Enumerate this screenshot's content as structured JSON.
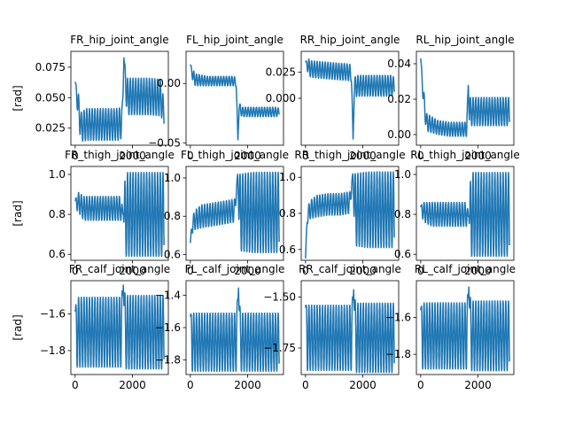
{
  "chart_data": {
    "type": "line",
    "grid": false,
    "subplots": [
      {
        "title": "FR_hip_joint_angle",
        "ylabel": "[rad]",
        "ylim": [
          0.011,
          0.088
        ],
        "yticks": [
          0.025,
          0.05,
          0.075
        ],
        "ytick_labels": [
          "0.025",
          "0.050",
          "0.075"
        ],
        "xlim": [
          -150,
          3250
        ],
        "xticks": [
          0,
          2000
        ],
        "xtick_labels": [
          "0",
          "2000"
        ],
        "series": {
          "x": [
            0,
            100,
            200,
            400,
            800,
            1200,
            1500,
            1640,
            1700,
            1800,
            2200,
            2600,
            3000,
            3100
          ],
          "y": [
            0.063,
            0.044,
            0.026,
            0.028,
            0.028,
            0.028,
            0.028,
            0.03,
            0.083,
            0.051,
            0.051,
            0.051,
            0.05,
            0.036
          ],
          "osc_amp": [
            0.0,
            0.012,
            0.012,
            0.013,
            0.013,
            0.013,
            0.013,
            0.013,
            0.0,
            0.015,
            0.015,
            0.015,
            0.015,
            0.01
          ]
        }
      },
      {
        "title": "FL_hip_joint_angle",
        "ylabel": "",
        "ylim": [
          -0.052,
          0.027
        ],
        "yticks": [
          -0.05,
          0.0
        ],
        "ytick_labels": [
          "−0.05",
          "0.00"
        ],
        "xlim": [
          -150,
          3250
        ],
        "xticks": [
          0,
          2000
        ],
        "xtick_labels": [
          "0",
          "2000"
        ],
        "series": {
          "x": [
            0,
            100,
            200,
            600,
            1000,
            1500,
            1600,
            1660,
            1700,
            1800,
            2400,
            3000,
            3100
          ],
          "y": [
            0.016,
            0.005,
            0.003,
            0.002,
            0.002,
            0.002,
            0.001,
            -0.048,
            -0.02,
            -0.024,
            -0.024,
            -0.024,
            -0.024
          ],
          "osc_amp": [
            0.0,
            0.006,
            0.005,
            0.004,
            0.004,
            0.004,
            0.004,
            0.0,
            0.004,
            0.004,
            0.004,
            0.004,
            0.003
          ]
        }
      },
      {
        "title": "RR_hip_joint_angle",
        "ylabel": "",
        "ylim": [
          -0.045,
          0.045
        ],
        "yticks": [
          0.0,
          0.025
        ],
        "ytick_labels": [
          "0.000",
          "0.025"
        ],
        "xlim": [
          -150,
          3250
        ],
        "xticks": [
          0,
          2000
        ],
        "xtick_labels": [
          "0",
          "2000"
        ],
        "series": {
          "x": [
            0,
            100,
            200,
            600,
            1000,
            1500,
            1600,
            1660,
            1700,
            1800,
            2400,
            3000,
            3100
          ],
          "y": [
            0.035,
            0.03,
            0.028,
            0.027,
            0.026,
            0.025,
            0.024,
            -0.04,
            0.01,
            0.012,
            0.012,
            0.012,
            0.012
          ],
          "osc_amp": [
            0.0,
            0.008,
            0.008,
            0.008,
            0.008,
            0.008,
            0.008,
            0.0,
            0.01,
            0.01,
            0.01,
            0.01,
            0.008
          ]
        }
      },
      {
        "title": "RL_hip_joint_angle",
        "ylabel": "",
        "ylim": [
          -0.006,
          0.047
        ],
        "yticks": [
          0.0,
          0.02,
          0.04
        ],
        "ytick_labels": [
          "0.00",
          "0.02",
          "0.04"
        ],
        "xlim": [
          -150,
          3250
        ],
        "xticks": [
          0,
          2000
        ],
        "xtick_labels": [
          "0",
          "2000"
        ],
        "series": {
          "x": [
            0,
            100,
            200,
            600,
            1000,
            1500,
            1600,
            1660,
            1700,
            1800,
            2400,
            3000,
            3100
          ],
          "y": [
            0.043,
            0.02,
            0.007,
            0.004,
            0.003,
            0.003,
            0.003,
            0.028,
            0.013,
            0.013,
            0.013,
            0.013,
            0.013
          ],
          "osc_amp": [
            0.0,
            0.006,
            0.005,
            0.004,
            0.004,
            0.004,
            0.004,
            0.0,
            0.008,
            0.008,
            0.008,
            0.008,
            0.008
          ]
        }
      },
      {
        "title": "FR_thigh_joint_angle",
        "ylabel": "[rad]",
        "ylim": [
          0.57,
          1.04
        ],
        "yticks": [
          0.6,
          0.8,
          1.0
        ],
        "ytick_labels": [
          "0.6",
          "0.8",
          "1.0"
        ],
        "xlim": [
          -150,
          3250
        ],
        "xticks": [
          0,
          2000
        ],
        "xtick_labels": [
          "0",
          "2000"
        ],
        "series": {
          "x": [
            0,
            60,
            120,
            300,
            700,
            1200,
            1600,
            1680,
            1750,
            2200,
            2700,
            3100
          ],
          "y": [
            0.87,
            0.86,
            0.86,
            0.83,
            0.83,
            0.83,
            0.83,
            0.8,
            0.8,
            0.8,
            0.8,
            0.8
          ],
          "osc_amp": [
            0.0,
            0.04,
            0.05,
            0.06,
            0.06,
            0.06,
            0.06,
            0.0,
            0.21,
            0.21,
            0.21,
            0.21
          ]
        }
      },
      {
        "title": "FL_thigh_joint_angle",
        "ylabel": "",
        "ylim": [
          0.57,
          1.06
        ],
        "yticks": [
          0.6,
          0.8,
          1.0
        ],
        "ytick_labels": [
          "0.6",
          "0.8",
          "1.0"
        ],
        "xlim": [
          -150,
          3250
        ],
        "xticks": [
          0,
          2000
        ],
        "xtick_labels": [
          "0",
          "2000"
        ],
        "series": {
          "x": [
            0,
            60,
            150,
            400,
            800,
            1200,
            1550,
            1650,
            1720,
            2200,
            2700,
            3100
          ],
          "y": [
            0.66,
            0.75,
            0.78,
            0.8,
            0.81,
            0.82,
            0.83,
            1.02,
            0.82,
            0.82,
            0.82,
            0.82
          ],
          "osc_amp": [
            0.0,
            0.04,
            0.05,
            0.06,
            0.06,
            0.06,
            0.06,
            0.0,
            0.2,
            0.21,
            0.21,
            0.21
          ]
        }
      },
      {
        "title": "RR_thigh_joint_angle",
        "ylabel": "",
        "ylim": [
          0.54,
          1.06
        ],
        "yticks": [
          0.6,
          0.8,
          1.0
        ],
        "ytick_labels": [
          "0.6",
          "0.8",
          "1.0"
        ],
        "xlim": [
          -150,
          3250
        ],
        "xticks": [
          0,
          2000
        ],
        "xtick_labels": [
          "0",
          "2000"
        ],
        "series": {
          "x": [
            0,
            60,
            150,
            400,
            800,
            1200,
            1550,
            1650,
            1720,
            2200,
            2700,
            3100
          ],
          "y": [
            0.55,
            0.78,
            0.82,
            0.84,
            0.85,
            0.85,
            0.86,
            1.02,
            0.82,
            0.82,
            0.82,
            0.82
          ],
          "osc_amp": [
            0.0,
            0.04,
            0.05,
            0.06,
            0.06,
            0.06,
            0.06,
            0.0,
            0.2,
            0.21,
            0.21,
            0.21
          ]
        }
      },
      {
        "title": "RL_thigh_joint_angle",
        "ylabel": "",
        "ylim": [
          0.57,
          1.04
        ],
        "yticks": [
          0.6,
          0.8,
          1.0
        ],
        "ytick_labels": [
          "0.6",
          "0.8",
          "1.0"
        ],
        "xlim": [
          -150,
          3250
        ],
        "xticks": [
          0,
          2000
        ],
        "xtick_labels": [
          "0",
          "2000"
        ],
        "series": {
          "x": [
            0,
            60,
            150,
            400,
            800,
            1200,
            1600,
            1680,
            1750,
            2200,
            2700,
            3100
          ],
          "y": [
            0.84,
            0.82,
            0.81,
            0.8,
            0.8,
            0.8,
            0.8,
            0.79,
            0.8,
            0.8,
            0.8,
            0.8
          ],
          "osc_amp": [
            0.0,
            0.04,
            0.05,
            0.06,
            0.06,
            0.06,
            0.06,
            0.0,
            0.21,
            0.21,
            0.21,
            0.21
          ]
        }
      },
      {
        "title": "FR_calf_joint_angle",
        "ylabel": "[rad]",
        "ylim": [
          -1.93,
          -1.42
        ],
        "yticks": [
          -1.8,
          -1.6
        ],
        "ytick_labels": [
          "−1.8",
          "−1.6"
        ],
        "xlim": [
          -150,
          3250
        ],
        "xticks": [
          0,
          2000
        ],
        "xtick_labels": [
          "0",
          "2000"
        ],
        "series": {
          "x": [
            0,
            60,
            150,
            600,
            1200,
            1600,
            1680,
            1750,
            2300,
            3100
          ],
          "y": [
            -1.58,
            -1.7,
            -1.7,
            -1.7,
            -1.7,
            -1.7,
            -1.44,
            -1.7,
            -1.7,
            -1.7
          ],
          "osc_amp": [
            0.0,
            0.19,
            0.19,
            0.19,
            0.19,
            0.19,
            0.0,
            0.2,
            0.2,
            0.2
          ]
        }
      },
      {
        "title": "FL_calf_joint_angle",
        "ylabel": "",
        "ylim": [
          -1.89,
          -1.31
        ],
        "yticks": [
          -1.8,
          -1.6,
          -1.4
        ],
        "ytick_labels": [
          "−1.8",
          "−1.6",
          "−1.4"
        ],
        "xlim": [
          -150,
          3250
        ],
        "xticks": [
          0,
          2000
        ],
        "xtick_labels": [
          "0",
          "2000"
        ],
        "series": {
          "x": [
            0,
            60,
            150,
            600,
            1200,
            1600,
            1680,
            1750,
            2300,
            3100
          ],
          "y": [
            -1.52,
            -1.69,
            -1.69,
            -1.69,
            -1.69,
            -1.69,
            -1.35,
            -1.69,
            -1.69,
            -1.69
          ],
          "osc_amp": [
            0.0,
            0.18,
            0.18,
            0.18,
            0.18,
            0.18,
            0.0,
            0.18,
            0.18,
            0.18
          ]
        }
      },
      {
        "title": "RR_calf_joint_angle",
        "ylabel": "",
        "ylim": [
          -1.88,
          -1.42
        ],
        "yticks": [
          -1.75,
          -1.5
        ],
        "ytick_labels": [
          "−1.75",
          "−1.50"
        ],
        "xlim": [
          -150,
          3250
        ],
        "xticks": [
          0,
          2000
        ],
        "xtick_labels": [
          "0",
          "2000"
        ],
        "series": {
          "x": [
            0,
            60,
            150,
            600,
            1200,
            1600,
            1680,
            1750,
            2300,
            3100
          ],
          "y": [
            -1.54,
            -1.7,
            -1.7,
            -1.7,
            -1.7,
            -1.7,
            -1.46,
            -1.7,
            -1.7,
            -1.7
          ],
          "osc_amp": [
            0.0,
            0.16,
            0.16,
            0.16,
            0.16,
            0.16,
            0.0,
            0.17,
            0.17,
            0.17
          ]
        }
      },
      {
        "title": "RL_calf_joint_angle",
        "ylabel": "",
        "ylim": [
          -1.91,
          -1.4
        ],
        "yticks": [
          -1.8,
          -1.6
        ],
        "ytick_labels": [
          "−1.8",
          "−1.6"
        ],
        "xlim": [
          -150,
          3250
        ],
        "xticks": [
          0,
          2000
        ],
        "xtick_labels": [
          "0",
          "2000"
        ],
        "series": {
          "x": [
            0,
            60,
            150,
            600,
            1200,
            1600,
            1680,
            1750,
            2300,
            3100
          ],
          "y": [
            -1.55,
            -1.7,
            -1.7,
            -1.7,
            -1.7,
            -1.7,
            -1.43,
            -1.7,
            -1.7,
            -1.7
          ],
          "osc_amp": [
            0.0,
            0.18,
            0.18,
            0.18,
            0.18,
            0.18,
            0.0,
            0.19,
            0.19,
            0.19
          ]
        }
      }
    ]
  }
}
